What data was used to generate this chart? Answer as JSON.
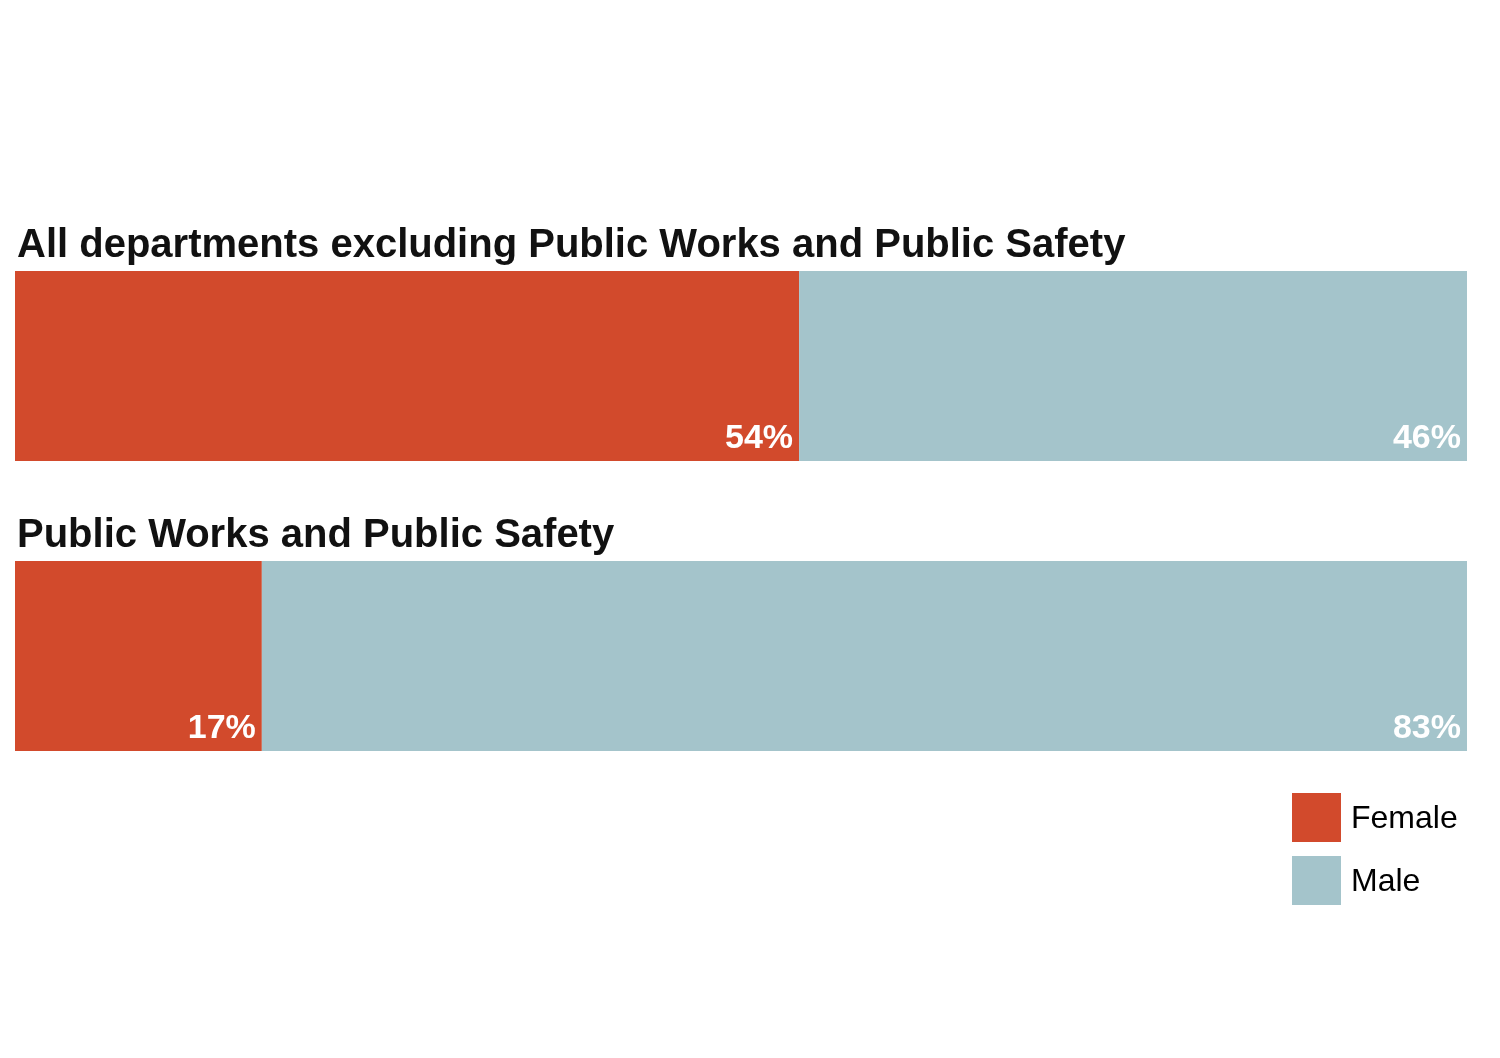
{
  "chart_data": {
    "type": "bar",
    "orientation": "horizontal",
    "stacked": true,
    "categories": [
      "All departments excluding Public Works and Public Safety",
      "Public Works and Public Safety"
    ],
    "series": [
      {
        "name": "Female",
        "color": "#d24a2c",
        "values": [
          54,
          17
        ],
        "value_labels": [
          "54%",
          "17%"
        ]
      },
      {
        "name": "Male",
        "color": "#a4c4cb",
        "values": [
          46,
          83
        ],
        "value_labels": [
          "46%",
          "83%"
        ]
      }
    ],
    "xlim": [
      0,
      100
    ],
    "legend": "bottom right"
  }
}
